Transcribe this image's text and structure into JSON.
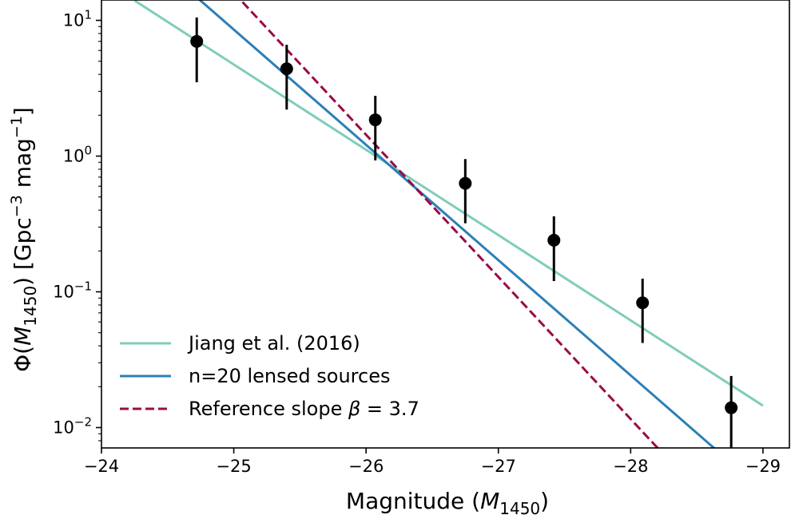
{
  "chart_data": {
    "type": "line",
    "title": "",
    "xlabel": "Magnitude (M_1450)",
    "xlabel_parts": {
      "prefix": "Magnitude (",
      "var": "M",
      "sub": "1450",
      "suffix": ")"
    },
    "ylabel": "Φ(M_1450) [Gpc^-3 mag^-1]",
    "ylabel_parts": {
      "phi": "Φ(",
      "var": "M",
      "sub": "1450",
      "mid": ")  [Gpc",
      "exp1": "−3",
      "unit2": " mag",
      "exp2": "−1",
      "end": "]"
    },
    "xlim": [
      -24,
      -29.2
    ],
    "ylim_log10": [
      -2.15,
      1.15
    ],
    "x_ticks": [
      -24,
      -25,
      -26,
      -27,
      -28,
      -29
    ],
    "x_tick_labels": [
      "−24",
      "−25",
      "−26",
      "−27",
      "−28",
      "−29"
    ],
    "y_ticks": [
      {
        "base": "10",
        "exp": "1",
        "value": 1
      },
      {
        "base": "10",
        "exp": "0",
        "value": 0
      },
      {
        "base": "10",
        "exp": "−1",
        "value": -1
      },
      {
        "base": "10",
        "exp": "−2",
        "value": -2
      }
    ],
    "y_scale": "log",
    "series": [
      {
        "name": "Jiang et al. (2016)",
        "style": "solid",
        "color": "#7fcdbb",
        "x": [
          -24.25,
          -29.0
        ],
        "y": [
          14.0,
          0.0145
        ]
      },
      {
        "name": "n=20 lensed sources",
        "style": "solid",
        "color": "#2c7fb8",
        "x": [
          -24.68,
          -28.65
        ],
        "y": [
          16.0,
          0.0068
        ]
      },
      {
        "name": "Reference slope β = 3.7",
        "style": "dashed",
        "color": "#990c47",
        "x": [
          -25.0,
          -28.22
        ],
        "y": [
          16.0,
          0.0068
        ]
      }
    ],
    "data_points": {
      "x": [
        -24.72,
        -25.4,
        -26.07,
        -26.75,
        -27.42,
        -28.09,
        -28.76
      ],
      "y": [
        7.0,
        4.4,
        1.85,
        0.63,
        0.24,
        0.083,
        0.014
      ],
      "y_err_low": [
        3.5,
        2.2,
        0.93,
        0.32,
        0.12,
        0.042,
        0.007
      ],
      "y_err_high": [
        10.5,
        6.6,
        2.78,
        0.95,
        0.36,
        0.125,
        0.024
      ],
      "color": "#000000"
    },
    "legend": {
      "placement": "lower-left",
      "entries": [
        {
          "label_main": "Jiang et al. (2016)",
          "beta": "",
          "label_tail": ""
        },
        {
          "label_main": "n=20 lensed sources",
          "beta": "",
          "label_tail": ""
        },
        {
          "label_main": "Reference slope ",
          "beta": "β",
          "label_tail": " = 3.7"
        }
      ]
    }
  }
}
